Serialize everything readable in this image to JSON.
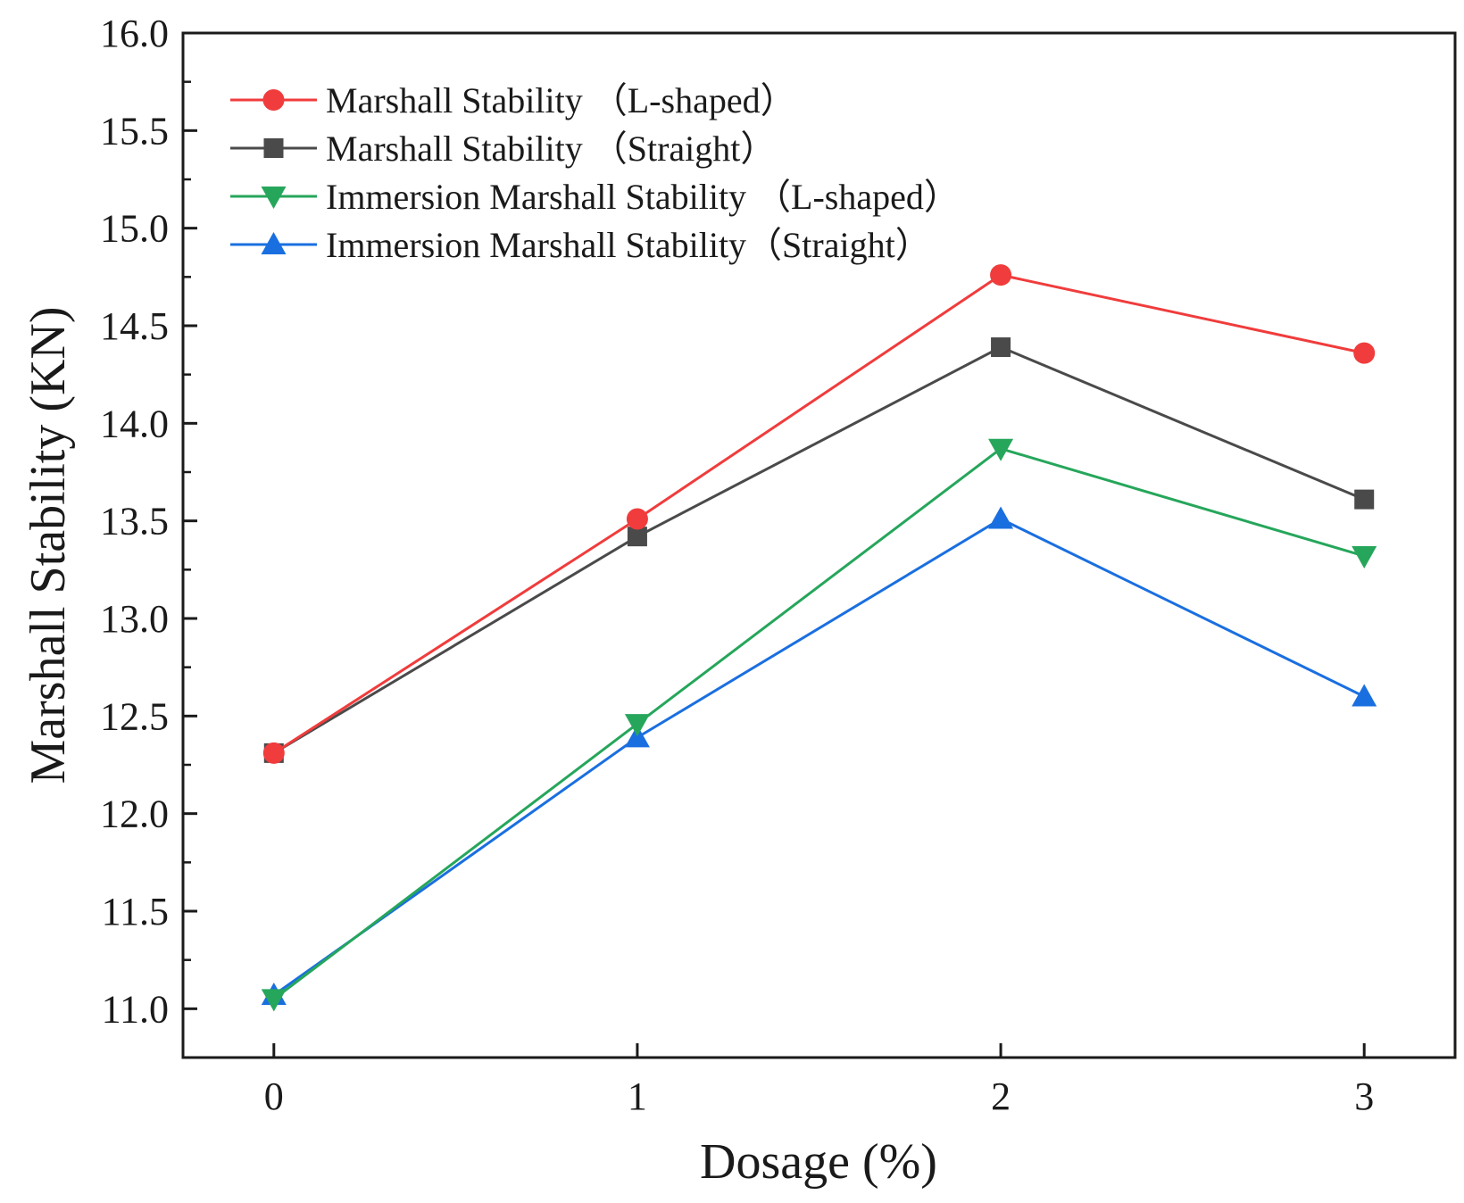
{
  "chart_data": {
    "type": "line",
    "title": "",
    "xlabel": "Dosage (%)",
    "ylabel": "Marshall Stability (KN)",
    "x": [
      0,
      1,
      2,
      3
    ],
    "x_tick_labels": [
      "0",
      "1",
      "2",
      "3"
    ],
    "xlim": [
      -0.25,
      3.25
    ],
    "ylim": [
      10.75,
      16.0
    ],
    "y_ticks": [
      11.0,
      11.5,
      12.0,
      12.5,
      13.0,
      13.5,
      14.0,
      14.5,
      15.0,
      15.5,
      16.0
    ],
    "y_tick_labels": [
      "11.0",
      "11.5",
      "12.0",
      "12.5",
      "13.0",
      "13.5",
      "14.0",
      "14.5",
      "15.0",
      "15.5",
      "16.0"
    ],
    "grid": false,
    "legend_position": "top-left",
    "series": [
      {
        "name": "Marshall Stability （L-shaped）",
        "values": [
          12.31,
          13.51,
          14.76,
          14.36
        ],
        "color": "#f03c3c",
        "marker": "circle"
      },
      {
        "name": "Marshall Stability （Straight）",
        "values": [
          12.31,
          13.42,
          14.39,
          13.61
        ],
        "color": "#4a4a4a",
        "marker": "square"
      },
      {
        "name": "Immersion Marshall Stability （L-shaped）",
        "values": [
          11.05,
          12.46,
          13.87,
          13.32
        ],
        "color": "#26a65b",
        "marker": "triangle-down"
      },
      {
        "name": "Immersion Marshall Stability（Straight）",
        "values": [
          11.07,
          12.39,
          13.51,
          12.6
        ],
        "color": "#1a6fe0",
        "marker": "triangle-up"
      }
    ]
  }
}
